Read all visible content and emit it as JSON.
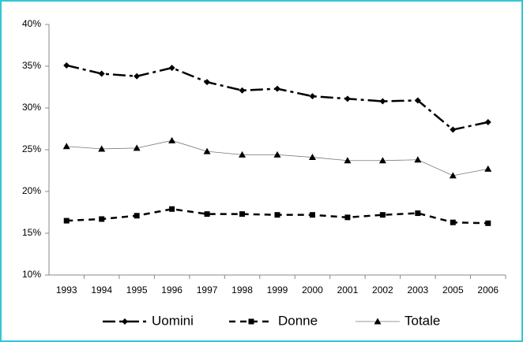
{
  "chart_data": {
    "type": "line",
    "categories": [
      "1993",
      "1994",
      "1995",
      "1996",
      "1997",
      "1998",
      "1999",
      "2000",
      "2001",
      "2002",
      "2003",
      "2005",
      "2006"
    ],
    "series": [
      {
        "name": "Uomini",
        "color": "#000000",
        "marker": "diamond",
        "line_style": "dash-dot",
        "values": [
          35.1,
          34.1,
          33.8,
          34.8,
          33.1,
          32.1,
          32.3,
          31.4,
          31.1,
          30.8,
          30.9,
          27.4,
          28.3
        ]
      },
      {
        "name": "Donne",
        "color": "#000000",
        "marker": "square",
        "line_style": "dash",
        "values": [
          16.5,
          16.7,
          17.1,
          17.9,
          17.3,
          17.3,
          17.2,
          17.2,
          16.9,
          17.2,
          17.4,
          16.3,
          16.2
        ]
      },
      {
        "name": "Totale",
        "color": "#000000",
        "marker": "triangle",
        "line_style": "thin",
        "values": [
          25.4,
          25.1,
          25.2,
          26.1,
          24.8,
          24.4,
          24.4,
          24.1,
          23.7,
          23.7,
          23.8,
          21.9,
          22.7
        ]
      }
    ],
    "ylim": [
      10,
      40
    ],
    "yticks": [
      {
        "value": 10,
        "label": "10%"
      },
      {
        "value": 15,
        "label": "15%"
      },
      {
        "value": 20,
        "label": "20%"
      },
      {
        "value": 25,
        "label": "25%"
      },
      {
        "value": 30,
        "label": "30%"
      },
      {
        "value": 35,
        "label": "35%"
      },
      {
        "value": 40,
        "label": "40%"
      }
    ],
    "grid": false,
    "legend": "bottom"
  }
}
